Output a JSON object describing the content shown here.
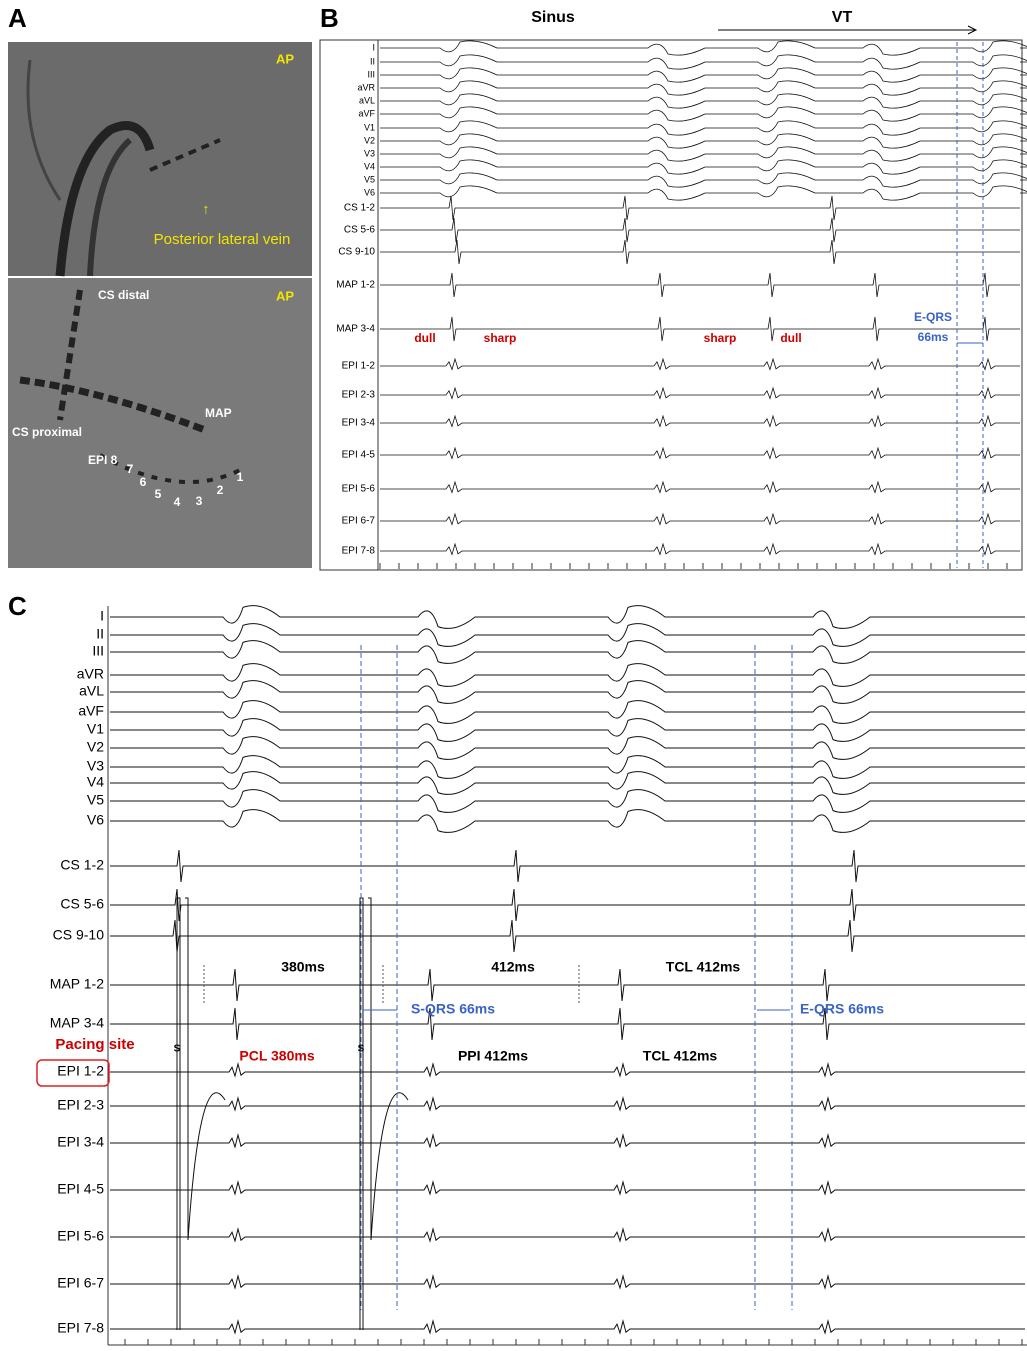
{
  "panel_a": {
    "label": "A",
    "top": {
      "view": "AP",
      "annotation": "Posterior lateral vein"
    },
    "bottom": {
      "view": "AP",
      "labels": [
        "CS distal",
        "CS proximal",
        "MAP",
        "EPI 8",
        "7",
        "6",
        "5",
        "4",
        "3",
        "2",
        "1"
      ]
    }
  },
  "panel_b": {
    "label": "B",
    "header": [
      "Sinus",
      "VT"
    ],
    "channels": [
      "I",
      "II",
      "III",
      "aVR",
      "aVL",
      "aVF",
      "V1",
      "V2",
      "V3",
      "V4",
      "V5",
      "V6",
      "CS 1-2",
      "CS 5-6",
      "CS 9-10",
      "MAP 1-2",
      "MAP 3-4",
      "EPI 1-2",
      "EPI 2-3",
      "EPI 3-4",
      "EPI 4-5",
      "EPI 5-6",
      "EPI 6-7",
      "EPI 7-8"
    ],
    "annotations": [
      "dull",
      "sharp",
      "sharp",
      "dull",
      "E-QRS",
      "66ms"
    ]
  },
  "panel_c": {
    "label": "C",
    "channels": [
      "I",
      "II",
      "III",
      "aVR",
      "aVL",
      "aVF",
      "V1",
      "V2",
      "V3",
      "V4",
      "V5",
      "V6",
      "CS 1-2",
      "CS 5-6",
      "CS 9-10",
      "MAP 1-2",
      "MAP 3-4",
      "EPI 1-2",
      "EPI 2-3",
      "EPI 3-4",
      "EPI 4-5",
      "EPI 5-6",
      "EPI 6-7",
      "EPI 7-8"
    ],
    "annotations": [
      "380ms",
      "412ms",
      "TCL 412ms",
      "S-QRS 66ms",
      "E-QRS 66ms",
      "Pacing site",
      "PCL 380ms",
      "PPI 412ms",
      "TCL 412ms",
      "S",
      "S"
    ]
  }
}
